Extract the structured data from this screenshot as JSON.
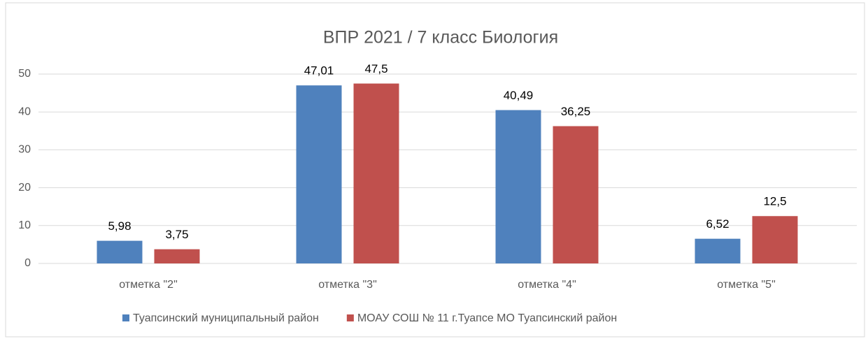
{
  "chart_data": {
    "type": "bar",
    "title": "ВПР 2021 / 7 класс Биология",
    "categories": [
      "отметка \"2\"",
      "отметка \"3\"",
      "отметка \"4\"",
      "отметка \"5\""
    ],
    "series": [
      {
        "name": "Туапсинский муниципальный район",
        "color": "#4f81bd",
        "values": [
          5.98,
          47.01,
          40.49,
          6.52
        ],
        "value_labels": [
          "5,98",
          "47,01",
          "40,49",
          "6,52"
        ]
      },
      {
        "name": "МОАУ СОШ № 11 г.Туапсе МО Туапсинский район",
        "color": "#c0504d",
        "values": [
          3.75,
          47.5,
          36.25,
          12.5
        ],
        "value_labels": [
          "3,75",
          "47,5",
          "36,25",
          "12,5"
        ]
      }
    ],
    "ylim": [
      0,
      50
    ],
    "yticks": [
      0,
      10,
      20,
      30,
      40,
      50
    ],
    "grid": true,
    "legend": "bottom"
  }
}
